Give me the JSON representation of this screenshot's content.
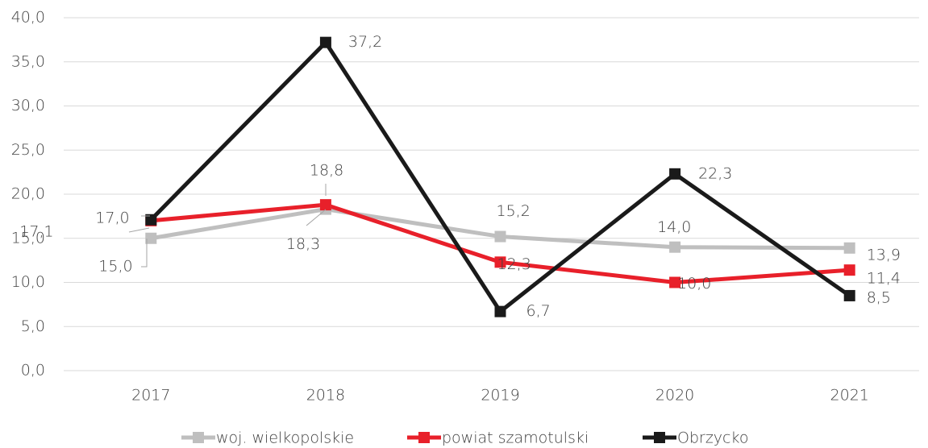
{
  "chart_data": {
    "type": "line",
    "categories": [
      "2017",
      "2018",
      "2019",
      "2020",
      "2021"
    ],
    "series": [
      {
        "name": "woj. wielkopolskie",
        "color": "#bfbfbf",
        "values": [
          15.0,
          18.3,
          15.2,
          14.0,
          13.9
        ],
        "value_labels": [
          "15,0",
          "18,3",
          "15,2",
          "14,0",
          "13,9"
        ]
      },
      {
        "name": "powiat szamotulski",
        "color": "#e8202a",
        "values": [
          17.0,
          18.8,
          12.3,
          10.0,
          11.4
        ],
        "value_labels": [
          "17,0",
          "18,8",
          "12,3",
          "10,0",
          "11,4"
        ]
      },
      {
        "name": "Obrzycko",
        "color": "#1a1a1a",
        "values": [
          17.1,
          37.2,
          6.7,
          22.3,
          8.5
        ],
        "value_labels": [
          "17,1",
          "37,2",
          "6,7",
          "22,3",
          "8,5"
        ]
      }
    ],
    "ylim": [
      0,
      40
    ],
    "yticks": [
      {
        "value": 0,
        "label": "0,0"
      },
      {
        "value": 5,
        "label": "5,0"
      },
      {
        "value": 10,
        "label": "10,0"
      },
      {
        "value": 15,
        "label": "15,0"
      },
      {
        "value": 20,
        "label": "20,0"
      },
      {
        "value": 25,
        "label": "25,0"
      },
      {
        "value": 30,
        "label": "30,0"
      },
      {
        "value": 35,
        "label": "35,0"
      },
      {
        "value": 40,
        "label": "40,0"
      }
    ],
    "grid": true,
    "legend": "bottom"
  }
}
